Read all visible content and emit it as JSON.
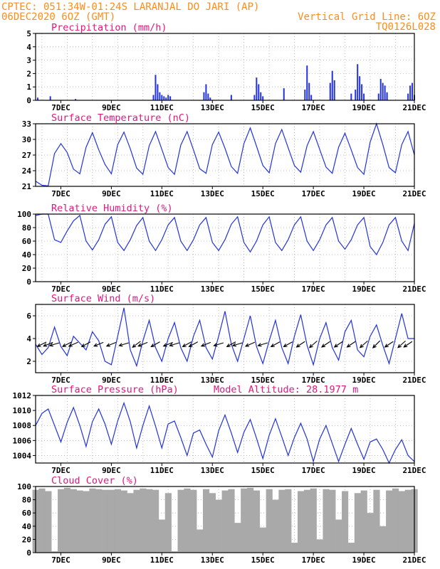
{
  "header": {
    "line1_left": "CPTEC:  051:34W-01:24S  LARANJAL DO JARI (AP)",
    "line2_left": "06DEC2020 6OZ (GMT)",
    "line2_right": "Vertical Grid Line: 6OZ",
    "line3_right": "TQ0126L028"
  },
  "colors": {
    "header_text": "#ff8c1a",
    "title_text": "#e0177f",
    "series_line": "#2233dd",
    "cloud_fill": "#a9a9a9",
    "grid": "#b0b0b0"
  },
  "x_axis": {
    "start_hour": 0,
    "end_hour": 360,
    "tick_hours": [
      24,
      72,
      120,
      168,
      216,
      264,
      312,
      360
    ],
    "tick_labels": [
      "7DEC",
      "9DEC",
      "11DEC",
      "13DEC",
      "15DEC",
      "17DEC",
      "19DEC",
      "21DEC"
    ],
    "grid_spacing_hours": 24,
    "grid_offset_hours": 6
  },
  "chart_data": [
    {
      "type": "bar",
      "title": "Precipitation (mm/h)",
      "ylim": [
        0,
        5
      ],
      "yticks": [
        0,
        1,
        2,
        3,
        4,
        5
      ],
      "x_hours": [
        2,
        14,
        38,
        112,
        114,
        116,
        118,
        120,
        122,
        124,
        126,
        128,
        160,
        162,
        164,
        166,
        186,
        208,
        210,
        212,
        214,
        216,
        236,
        256,
        258,
        260,
        262,
        280,
        282,
        284,
        300,
        304,
        306,
        308,
        310,
        312,
        326,
        328,
        330,
        332,
        334,
        334,
        354,
        356,
        358,
        360
      ],
      "values": [
        0.2,
        0.3,
        0.1,
        0.4,
        1.9,
        1.2,
        0.6,
        0.4,
        0.3,
        0.2,
        0.4,
        0.3,
        0.6,
        1.2,
        0.5,
        0.2,
        0.4,
        0.4,
        1.7,
        1.2,
        0.6,
        0.3,
        0.9,
        0.8,
        2.6,
        1.3,
        0.4,
        1.3,
        2.2,
        1.5,
        0.5,
        0.8,
        2.7,
        1.8,
        1.2,
        0.5,
        0.5,
        1.6,
        1.3,
        1.1,
        0.6,
        0.5,
        0.5,
        1.1,
        1.3,
        0.4
      ],
      "xlabel": "",
      "ylabel": ""
    },
    {
      "type": "line",
      "title": "Surface Temperature (nC)",
      "ylim": [
        21,
        33
      ],
      "yticks": [
        21,
        24,
        27,
        30,
        33
      ],
      "x": [
        0,
        6,
        12,
        18,
        24,
        30,
        36,
        42,
        48,
        54,
        60,
        66,
        72,
        78,
        84,
        90,
        96,
        102,
        108,
        114,
        120,
        126,
        132,
        138,
        144,
        150,
        156,
        162,
        168,
        174,
        180,
        186,
        192,
        198,
        204,
        210,
        216,
        222,
        228,
        234,
        240,
        246,
        252,
        258,
        264,
        270,
        276,
        282,
        288,
        294,
        300,
        306,
        312,
        318,
        324,
        330,
        336,
        342,
        348,
        354,
        360
      ],
      "values": [
        22.0,
        21.2,
        21.1,
        27.3,
        29.2,
        27.5,
        24.3,
        23.4,
        28.5,
        31.3,
        28.0,
        25.2,
        23.4,
        29.0,
        31.4,
        28.2,
        24.5,
        23.3,
        28.8,
        31.5,
        28.1,
        24.6,
        23.3,
        28.9,
        31.5,
        28.0,
        24.4,
        23.5,
        29.0,
        31.4,
        28.3,
        24.8,
        23.5,
        29.2,
        32.2,
        28.7,
        25.0,
        23.6,
        29.2,
        31.9,
        28.4,
        25.0,
        23.7,
        28.8,
        31.5,
        28.1,
        24.7,
        23.5,
        28.5,
        31.2,
        28.0,
        24.6,
        23.3,
        29.5,
        33.0,
        29.0,
        24.6,
        23.6,
        29.0,
        31.5,
        27.0
      ],
      "xlabel": "",
      "ylabel": ""
    },
    {
      "type": "line",
      "title": "Relative Humidity (%)",
      "ylim": [
        0,
        100
      ],
      "yticks": [
        0,
        20,
        40,
        60,
        80,
        100
      ],
      "x": [
        0,
        6,
        12,
        18,
        24,
        30,
        36,
        42,
        48,
        54,
        60,
        66,
        72,
        78,
        84,
        90,
        96,
        102,
        108,
        114,
        120,
        126,
        132,
        138,
        144,
        150,
        156,
        162,
        168,
        174,
        180,
        186,
        192,
        198,
        204,
        210,
        216,
        222,
        228,
        234,
        240,
        246,
        252,
        258,
        264,
        270,
        276,
        282,
        288,
        294,
        300,
        306,
        312,
        318,
        324,
        330,
        336,
        342,
        348,
        354,
        360
      ],
      "values": [
        98,
        100,
        100,
        62,
        58,
        75,
        90,
        98,
        60,
        47,
        62,
        85,
        96,
        58,
        46,
        62,
        83,
        95,
        60,
        46,
        62,
        84,
        95,
        60,
        46,
        62,
        84,
        95,
        58,
        46,
        62,
        85,
        96,
        58,
        44,
        60,
        84,
        96,
        58,
        46,
        62,
        84,
        96,
        60,
        46,
        62,
        84,
        95,
        60,
        48,
        62,
        84,
        95,
        52,
        40,
        58,
        84,
        95,
        60,
        46,
        86
      ],
      "xlabel": "",
      "ylabel": ""
    },
    {
      "type": "line",
      "title": "Surface Wind (m/s)",
      "ylim": [
        1,
        7
      ],
      "yticks": [
        2,
        4,
        6
      ],
      "x": [
        0,
        6,
        12,
        18,
        24,
        30,
        36,
        42,
        48,
        54,
        60,
        66,
        72,
        78,
        84,
        90,
        96,
        102,
        108,
        114,
        120,
        126,
        132,
        138,
        144,
        150,
        156,
        162,
        168,
        174,
        180,
        186,
        192,
        198,
        204,
        210,
        216,
        222,
        228,
        234,
        240,
        246,
        252,
        258,
        264,
        270,
        276,
        282,
        288,
        294,
        300,
        306,
        312,
        318,
        324,
        330,
        336,
        342,
        348,
        354,
        360
      ],
      "values": [
        3.5,
        2.6,
        3.2,
        5.0,
        3.3,
        2.5,
        4.2,
        3.6,
        3.0,
        4.6,
        3.8,
        2.0,
        1.7,
        4.2,
        6.7,
        3.0,
        1.6,
        3.8,
        5.6,
        3.2,
        2.0,
        4.0,
        5.4,
        3.2,
        2.0,
        4.2,
        5.6,
        3.2,
        2.2,
        4.2,
        6.4,
        3.5,
        2.0,
        4.0,
        6.0,
        3.3,
        1.8,
        3.8,
        5.6,
        3.2,
        1.8,
        4.2,
        6.1,
        3.4,
        1.7,
        4.0,
        5.4,
        3.2,
        2.1,
        4.6,
        5.6,
        3.0,
        2.4,
        4.2,
        5.2,
        3.4,
        1.8,
        4.0,
        6.2,
        4.0,
        4.0
      ],
      "vector_hours": [
        6,
        12,
        18,
        30,
        36,
        48,
        60,
        72,
        84,
        96,
        102,
        114,
        126,
        132,
        144,
        150,
        162,
        174,
        186,
        192,
        204,
        216,
        228,
        240,
        252,
        264,
        276,
        288,
        300,
        312,
        324,
        336,
        348,
        354
      ],
      "vector_dx": [
        -1,
        -1,
        -1,
        -1,
        -0.9,
        -0.9,
        -1,
        -1,
        -1,
        -0.8,
        -1,
        -0.9,
        -1,
        -1,
        -0.9,
        -0.9,
        -1,
        -1,
        -0.9,
        -1,
        -0.9,
        -1,
        -0.9,
        -0.9,
        -0.9,
        -0.8,
        -0.9,
        -0.9,
        -0.9,
        -0.8,
        -0.8,
        -0.9,
        -0.8,
        -0.9
      ],
      "vector_dy": [
        -0.5,
        -0.4,
        -0.3,
        -0.5,
        -0.4,
        -0.5,
        -0.4,
        -0.4,
        -0.3,
        -0.6,
        -0.4,
        -0.5,
        -0.4,
        -0.3,
        -0.5,
        -0.5,
        -0.4,
        -0.3,
        -0.5,
        -0.3,
        -0.4,
        -0.3,
        -0.5,
        -0.5,
        -0.6,
        -0.7,
        -0.6,
        -0.6,
        -0.6,
        -0.7,
        -0.8,
        -0.6,
        -0.7,
        -0.6
      ],
      "xlabel": "",
      "ylabel": ""
    },
    {
      "type": "line",
      "title": "Surface Pressure (hPa)",
      "annotation": "Model Altitude: 28.1977 m",
      "ylim": [
        1003,
        1012
      ],
      "yticks": [
        1004,
        1006,
        1008,
        1010,
        1012
      ],
      "x": [
        0,
        6,
        12,
        18,
        24,
        30,
        36,
        42,
        48,
        54,
        60,
        66,
        72,
        78,
        84,
        90,
        96,
        102,
        108,
        114,
        120,
        126,
        132,
        138,
        144,
        150,
        156,
        162,
        168,
        174,
        180,
        186,
        192,
        198,
        204,
        210,
        216,
        222,
        228,
        234,
        240,
        246,
        252,
        258,
        264,
        270,
        276,
        282,
        288,
        294,
        300,
        306,
        312,
        318,
        324,
        330,
        336,
        342,
        348,
        354,
        360
      ],
      "values": [
        1008.0,
        1009.6,
        1010.2,
        1008.0,
        1005.8,
        1008.4,
        1010.4,
        1008.0,
        1005.2,
        1008.5,
        1010.2,
        1008.2,
        1005.5,
        1008.6,
        1011.0,
        1008.5,
        1005.0,
        1008.0,
        1010.6,
        1007.9,
        1005.0,
        1008.2,
        1008.6,
        1006.4,
        1004.0,
        1007.0,
        1007.4,
        1005.5,
        1003.8,
        1007.3,
        1009.4,
        1007.0,
        1004.4,
        1007.1,
        1008.8,
        1006.3,
        1003.6,
        1006.7,
        1008.9,
        1006.5,
        1004.0,
        1006.4,
        1008.3,
        1006.2,
        1003.2,
        1006.2,
        1008.0,
        1005.6,
        1003.2,
        1005.5,
        1007.6,
        1005.5,
        1003.5,
        1005.8,
        1006.2,
        1004.8,
        1003.0,
        1004.8,
        1006.1,
        1004.0,
        1003.2
      ],
      "xlabel": "",
      "ylabel": ""
    },
    {
      "type": "area",
      "title": "Cloud Cover (%)",
      "ylim": [
        0,
        100
      ],
      "yticks": [
        0,
        20,
        40,
        60,
        80,
        100
      ],
      "x": [
        0,
        6,
        12,
        18,
        24,
        30,
        36,
        42,
        48,
        54,
        60,
        66,
        72,
        78,
        84,
        90,
        96,
        102,
        108,
        114,
        120,
        126,
        132,
        138,
        144,
        150,
        156,
        162,
        168,
        174,
        180,
        186,
        192,
        198,
        204,
        210,
        216,
        222,
        228,
        234,
        240,
        246,
        252,
        258,
        264,
        270,
        276,
        282,
        288,
        294,
        300,
        306,
        312,
        318,
        324,
        330,
        336,
        342,
        348,
        354,
        360
      ],
      "values": [
        95,
        97,
        93,
        2,
        96,
        98,
        96,
        94,
        93,
        97,
        96,
        95,
        95,
        96,
        94,
        90,
        95,
        97,
        96,
        95,
        50,
        90,
        2,
        95,
        97,
        95,
        35,
        96,
        90,
        80,
        94,
        96,
        45,
        97,
        98,
        94,
        38,
        96,
        80,
        95,
        96,
        15,
        93,
        95,
        97,
        20,
        96,
        95,
        50,
        93,
        15,
        90,
        94,
        60,
        95,
        40,
        94,
        97,
        93,
        95,
        96
      ],
      "xlabel": "",
      "ylabel": ""
    }
  ]
}
